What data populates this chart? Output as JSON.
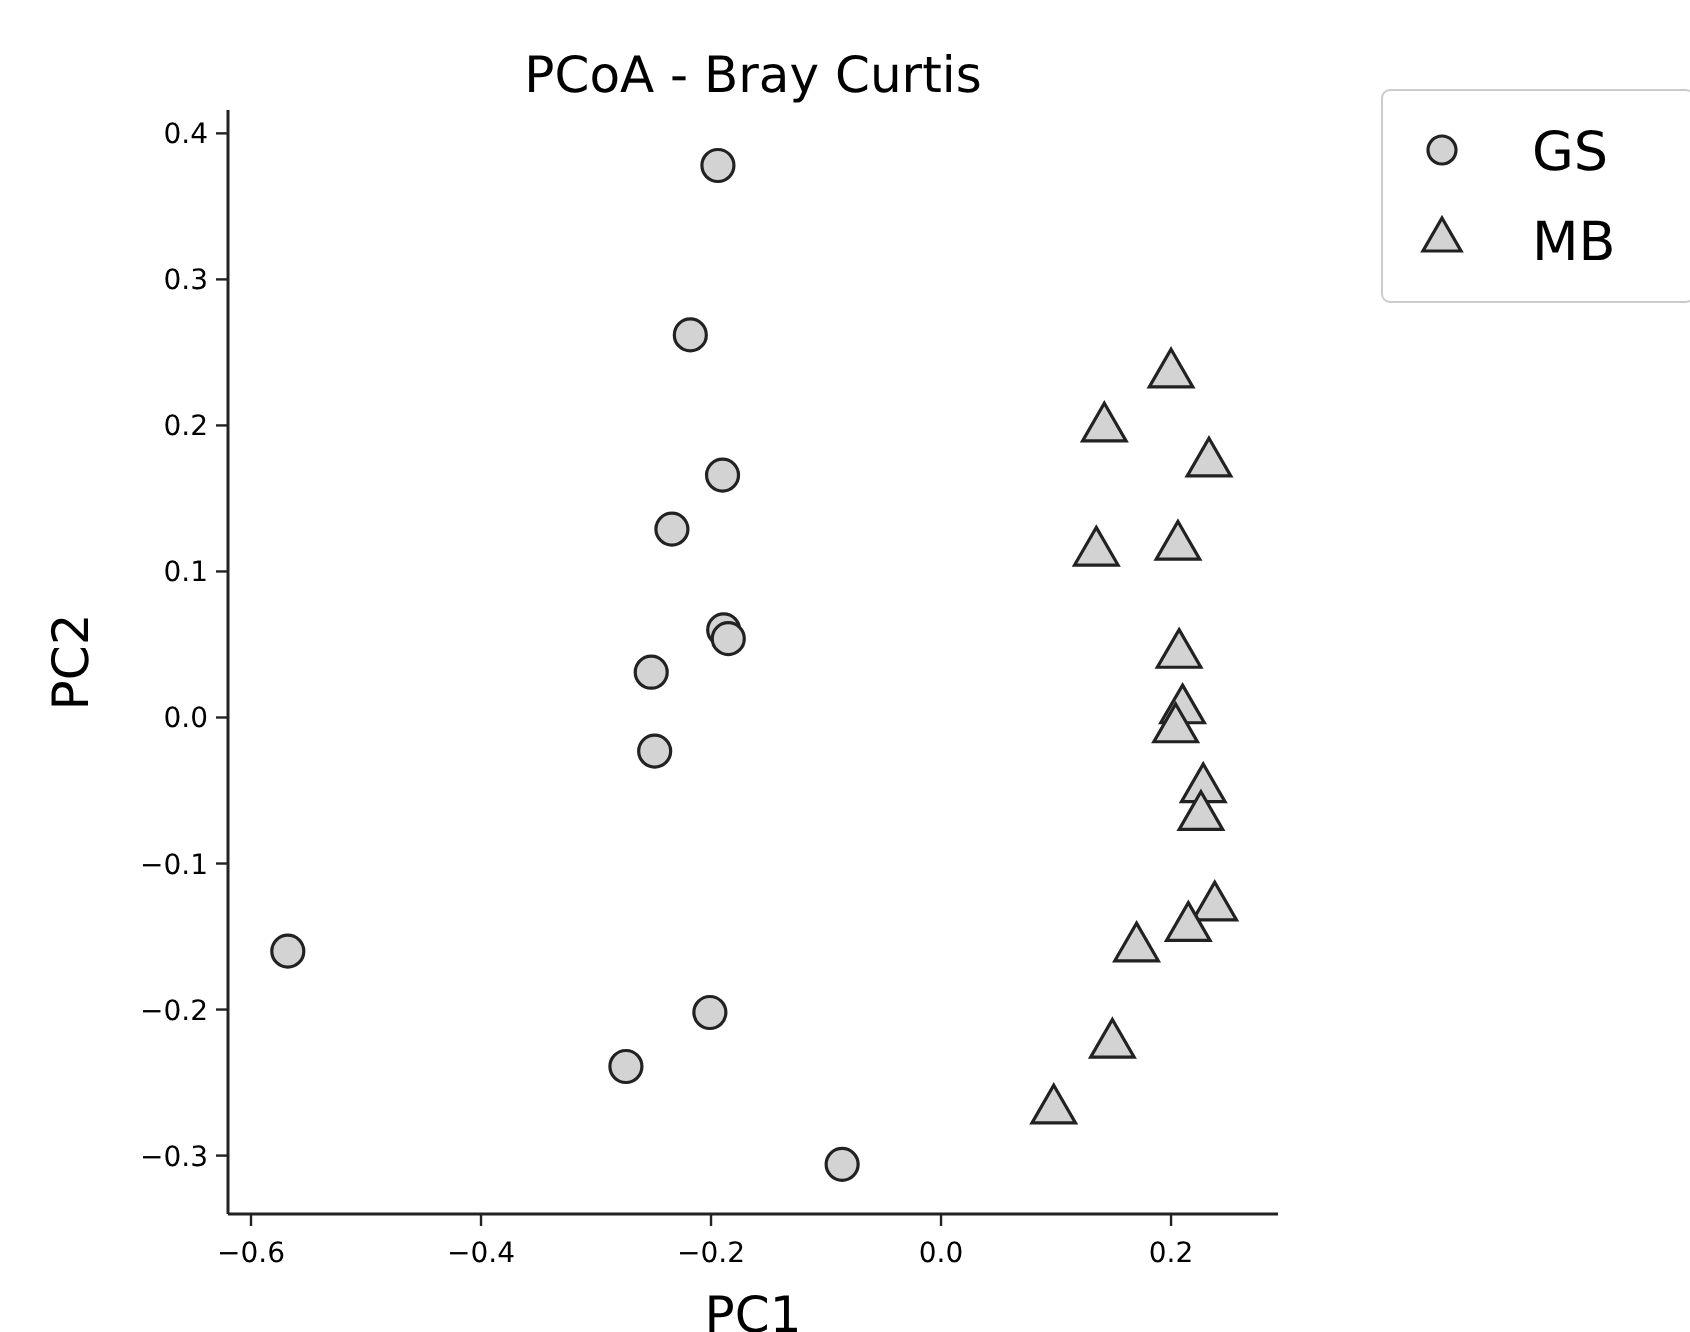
{
  "chart_data": {
    "type": "scatter",
    "title": "PCoA - Bray Curtis",
    "xlabel": "PC1",
    "ylabel": "PC2",
    "xlim": [
      -0.62,
      0.293
    ],
    "ylim": [
      -0.34,
      0.416
    ],
    "xticks": [
      {
        "value": -0.6,
        "label": "−0.6"
      },
      {
        "value": -0.4,
        "label": "−0.4"
      },
      {
        "value": -0.2,
        "label": "−0.2"
      },
      {
        "value": 0,
        "label": "0.0"
      },
      {
        "value": 0.2,
        "label": "0.2"
      }
    ],
    "yticks": [
      {
        "value": -0.3,
        "label": "−0.3"
      },
      {
        "value": -0.2,
        "label": "−0.2"
      },
      {
        "value": -0.1,
        "label": "−0.1"
      },
      {
        "value": 0,
        "label": "0.0"
      },
      {
        "value": 0.1,
        "label": "0.1"
      },
      {
        "value": 0.2,
        "label": "0.2"
      },
      {
        "value": 0.3,
        "label": "0.3"
      },
      {
        "value": 0.4,
        "label": "0.4"
      }
    ],
    "grid": false,
    "legend": "top right",
    "series": [
      {
        "name": "GS",
        "color": "#d3d3d3",
        "marker": "circle",
        "x": [
          -0.194,
          -0.218,
          -0.19,
          -0.234,
          -0.189,
          -0.185,
          -0.252,
          -0.249,
          -0.568,
          -0.201,
          -0.274,
          -0.086
        ],
        "values": [
          0.378,
          0.262,
          0.166,
          0.129,
          0.06,
          0.054,
          0.031,
          -0.023,
          -0.16,
          -0.202,
          -0.239,
          -0.306
        ]
      },
      {
        "name": "MB",
        "color": "#d3d3d3",
        "marker": "triangle",
        "x": [
          0.2,
          0.142,
          0.233,
          0.135,
          0.206,
          0.207,
          0.21,
          0.204,
          0.228,
          0.226,
          0.238,
          0.215,
          0.17,
          0.149,
          0.098
        ],
        "values": [
          0.235,
          0.198,
          0.174,
          0.113,
          0.117,
          0.043,
          0.005,
          -0.008,
          -0.049,
          -0.068,
          -0.13,
          -0.144,
          -0.158,
          -0.224,
          -0.269
        ]
      }
    ]
  }
}
